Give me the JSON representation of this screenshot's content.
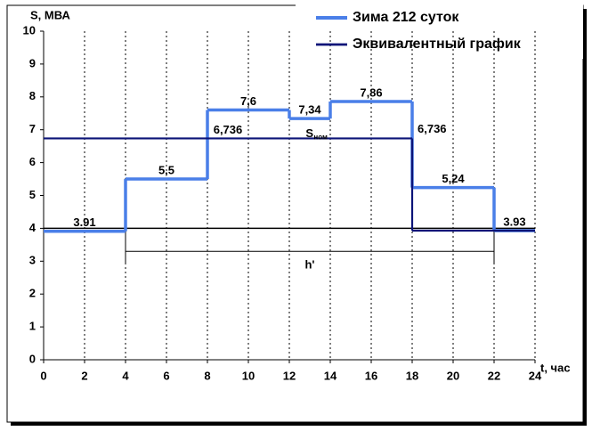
{
  "chart_data": {
    "type": "step",
    "y_label": "S, МВА",
    "x_label": "t, час",
    "x": [
      0,
      4,
      8,
      12,
      14,
      18,
      22
    ],
    "series": [
      {
        "name": "Зима 212 суток",
        "color": "#4a7fe8",
        "x": [
          0,
          4,
          8,
          12,
          14,
          18,
          22
        ],
        "values": [
          3.91,
          5.5,
          7.6,
          7.34,
          7.86,
          5.24,
          3.93
        ],
        "value_labels": [
          "3.91",
          "5,5",
          "7,6",
          "7,34",
          "7,86",
          "5,24",
          "3.93"
        ]
      },
      {
        "name": "Эквивалентный график",
        "color": "#0c1478",
        "x": [
          0,
          18
        ],
        "values": [
          6.736,
          3.93
        ],
        "value_labels": [
          "6,736",
          null
        ]
      }
    ],
    "annotations": {
      "right_label": "6,736",
      "s_nom": "S",
      "s_nom_sub": "ном",
      "h_label": "h'"
    },
    "reference_line": 4,
    "dimension": {
      "from": 4,
      "to": 22
    },
    "xlim": [
      0,
      24
    ],
    "xticks": [
      0,
      2,
      4,
      6,
      8,
      10,
      12,
      14,
      16,
      18,
      20,
      22,
      24
    ],
    "ylim": [
      0,
      10
    ],
    "yticks": [
      0,
      1,
      2,
      3,
      4,
      5,
      6,
      7,
      8,
      9,
      10
    ],
    "grid": "x-dashed",
    "legend": "top-right"
  }
}
